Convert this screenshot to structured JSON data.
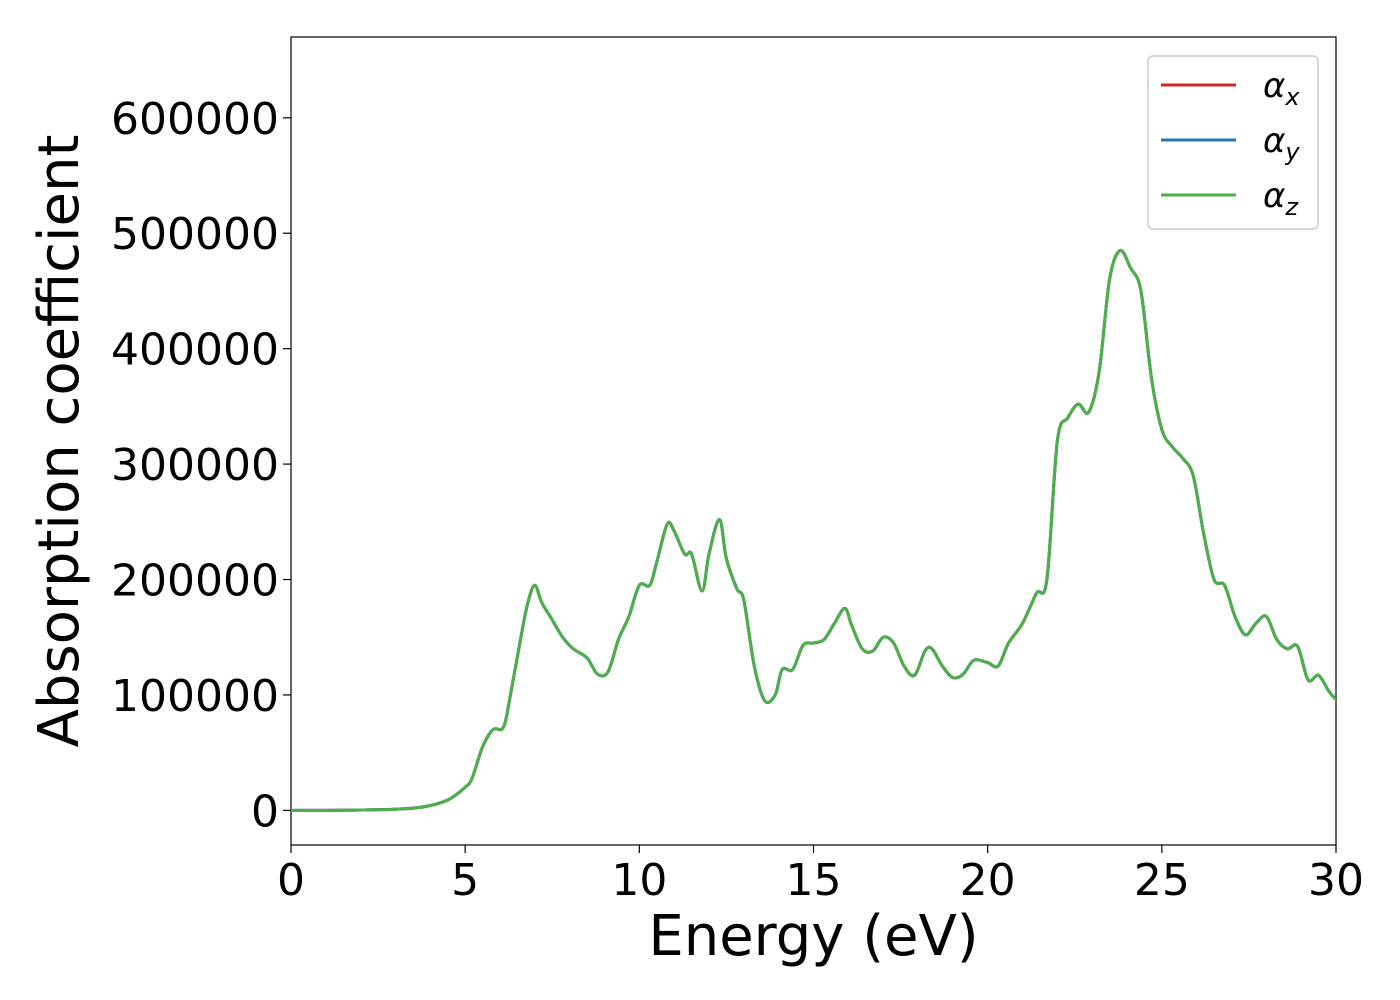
{
  "chart_data": {
    "type": "line",
    "title": "",
    "xlabel": "Energy (eV)",
    "ylabel": "Absorption coefficient",
    "xlim": [
      0,
      30
    ],
    "ylim": [
      -30000,
      670000
    ],
    "xticks": [
      0,
      5,
      10,
      15,
      20,
      25,
      30
    ],
    "yticks": [
      0,
      100000,
      200000,
      300000,
      400000,
      500000,
      600000
    ],
    "grid": false,
    "legend_position": "upper-right",
    "x": [
      0,
      1,
      2,
      3,
      3.8,
      4.5,
      5,
      5.2,
      5.5,
      5.8,
      6.1,
      6.3,
      6.6,
      6.8,
      7.0,
      7.2,
      7.5,
      7.8,
      8.1,
      8.5,
      8.8,
      9.1,
      9.4,
      9.7,
      10.0,
      10.3,
      10.5,
      10.8,
      11.0,
      11.3,
      11.5,
      11.8,
      12.0,
      12.3,
      12.5,
      12.8,
      13.0,
      13.3,
      13.6,
      13.9,
      14.1,
      14.4,
      14.7,
      15.0,
      15.3,
      15.6,
      15.9,
      16.1,
      16.4,
      16.7,
      17.0,
      17.3,
      17.6,
      17.9,
      18.2,
      18.4,
      18.7,
      19.0,
      19.3,
      19.6,
      20.0,
      20.3,
      20.6,
      21.0,
      21.4,
      21.7,
      22.0,
      22.3,
      22.6,
      22.9,
      23.2,
      23.5,
      23.8,
      24.1,
      24.4,
      24.7,
      25.0,
      25.3,
      25.6,
      25.9,
      26.2,
      26.5,
      26.8,
      27.1,
      27.4,
      27.7,
      28.0,
      28.3,
      28.6,
      28.9,
      29.2,
      29.5,
      29.8,
      30.0
    ],
    "series": [
      {
        "name": "α_x",
        "color": "#d62728",
        "values": [
          0,
          0,
          300,
          1000,
          3000,
          9000,
          20000,
          28000,
          55000,
          70000,
          72000,
          100000,
          150000,
          180000,
          195000,
          180000,
          165000,
          150000,
          140000,
          132000,
          118000,
          120000,
          148000,
          168000,
          195000,
          195000,
          215000,
          248000,
          242000,
          222000,
          222000,
          190000,
          222000,
          252000,
          218000,
          192000,
          182000,
          125000,
          95000,
          100000,
          122000,
          122000,
          143000,
          145000,
          148000,
          162000,
          175000,
          160000,
          140000,
          138000,
          150000,
          145000,
          125000,
          117000,
          138000,
          140000,
          125000,
          115000,
          118000,
          130000,
          128000,
          125000,
          145000,
          162000,
          188000,
          200000,
          320000,
          340000,
          352000,
          345000,
          380000,
          460000,
          485000,
          470000,
          450000,
          375000,
          330000,
          315000,
          305000,
          290000,
          240000,
          200000,
          195000,
          168000,
          152000,
          162000,
          168000,
          148000,
          140000,
          142000,
          113000,
          117000,
          103000,
          96000
        ]
      },
      {
        "name": "α_y",
        "color": "#1f77b4",
        "values": [
          0,
          0,
          300,
          1000,
          3000,
          9000,
          20000,
          28000,
          55000,
          70000,
          72000,
          100000,
          150000,
          180000,
          195000,
          180000,
          165000,
          150000,
          140000,
          132000,
          118000,
          120000,
          148000,
          168000,
          195000,
          195000,
          215000,
          248000,
          242000,
          222000,
          222000,
          190000,
          222000,
          252000,
          218000,
          192000,
          182000,
          125000,
          95000,
          100000,
          122000,
          122000,
          143000,
          145000,
          148000,
          162000,
          175000,
          160000,
          140000,
          138000,
          150000,
          145000,
          125000,
          117000,
          138000,
          140000,
          125000,
          115000,
          118000,
          130000,
          128000,
          125000,
          145000,
          162000,
          188000,
          200000,
          320000,
          340000,
          352000,
          345000,
          380000,
          460000,
          485000,
          470000,
          450000,
          375000,
          330000,
          315000,
          305000,
          290000,
          240000,
          200000,
          195000,
          168000,
          152000,
          162000,
          168000,
          148000,
          140000,
          142000,
          113000,
          117000,
          103000,
          96000
        ]
      },
      {
        "name": "α_z",
        "color": "#4daf4a",
        "values": [
          0,
          0,
          300,
          1000,
          3000,
          9000,
          20000,
          28000,
          55000,
          70000,
          72000,
          100000,
          150000,
          180000,
          195000,
          180000,
          165000,
          150000,
          140000,
          132000,
          118000,
          120000,
          148000,
          168000,
          195000,
          195000,
          215000,
          248000,
          242000,
          222000,
          222000,
          190000,
          222000,
          252000,
          218000,
          192000,
          182000,
          125000,
          95000,
          100000,
          122000,
          122000,
          143000,
          145000,
          148000,
          162000,
          175000,
          160000,
          140000,
          138000,
          150000,
          145000,
          125000,
          117000,
          138000,
          140000,
          125000,
          115000,
          118000,
          130000,
          128000,
          125000,
          145000,
          162000,
          188000,
          200000,
          320000,
          340000,
          352000,
          345000,
          380000,
          460000,
          485000,
          470000,
          450000,
          375000,
          330000,
          315000,
          305000,
          290000,
          240000,
          200000,
          195000,
          168000,
          152000,
          162000,
          168000,
          148000,
          140000,
          142000,
          113000,
          117000,
          103000,
          96000
        ]
      }
    ],
    "legend": [
      {
        "symbol": "α",
        "sub": "x",
        "color": "#d62728"
      },
      {
        "symbol": "α",
        "sub": "y",
        "color": "#1f77b4"
      },
      {
        "symbol": "α",
        "sub": "z",
        "color": "#4daf4a"
      }
    ]
  }
}
